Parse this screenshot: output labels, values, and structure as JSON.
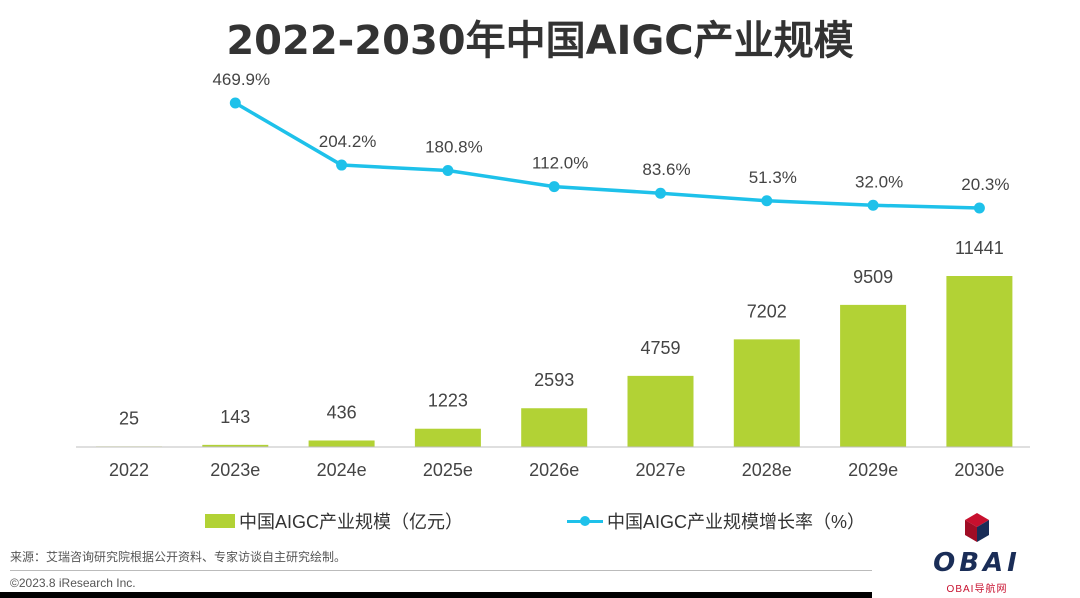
{
  "chart_data": {
    "type": "bar",
    "title": "2022-2030年中国AIGC产业规模",
    "categories": [
      "2022",
      "2023e",
      "2024e",
      "2025e",
      "2026e",
      "2027e",
      "2028e",
      "2029e",
      "2030e"
    ],
    "series": [
      {
        "name": "中国AIGC产业规模（亿元）",
        "type": "bar",
        "values": [
          25,
          143,
          436,
          1223,
          2593,
          4759,
          7202,
          9509,
          11441
        ],
        "labels": [
          "25",
          "143",
          "436",
          "1223",
          "2593",
          "4759",
          "7202",
          "9509",
          "11441"
        ],
        "color": "#b2d235"
      },
      {
        "name": "中国AIGC产业规模增长率（%）",
        "type": "line",
        "values": [
          null,
          469.9,
          204.2,
          180.8,
          112.0,
          83.6,
          51.3,
          32.0,
          20.3
        ],
        "labels": [
          "",
          "469.9%",
          "204.2%",
          "180.8%",
          "112.0%",
          "83.6%",
          "51.3%",
          "32.0%",
          "20.3%"
        ],
        "color": "#1ec1ea"
      }
    ],
    "legend": "bottom",
    "grid": false
  },
  "source_note": "来源：艾瑞咨询研究院根据公开资料、专家访谈自主研究绘制。",
  "copyright": "©2023.8 iResearch Inc.",
  "logo": {
    "text": "OBAI",
    "sub": "OBAI导航网",
    "colors": {
      "red": "#c8102e",
      "navy": "#1a2d57"
    }
  }
}
